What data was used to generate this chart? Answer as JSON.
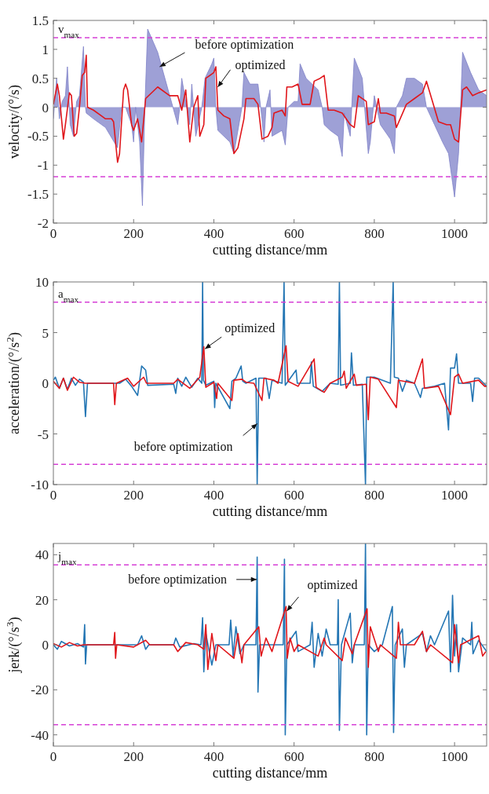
{
  "chart_data": [
    {
      "type": "line",
      "xlabel": "cutting distance/mm",
      "ylabel": "velocity/(°/s)",
      "xlim": [
        0,
        1080
      ],
      "xticks": [
        0,
        200,
        400,
        600,
        800,
        1000
      ],
      "ylim": [
        -2,
        1.5
      ],
      "yticks": [
        -2,
        -1.5,
        -1,
        -0.5,
        0,
        0.5,
        1,
        1.5
      ],
      "series": [
        {
          "type": "area",
          "color": "#7d80c8",
          "x": [
            0,
            8,
            15,
            22,
            30,
            35,
            42,
            50,
            58,
            65,
            75,
            80,
            82,
            100,
            130,
            160,
            170,
            180,
            195,
            200,
            205,
            215,
            222,
            228,
            235,
            260,
            290,
            310,
            315,
            320,
            330,
            340,
            345,
            355,
            370,
            378,
            395,
            400,
            405,
            410,
            440,
            450,
            470,
            475,
            490,
            510,
            520,
            525,
            530,
            540,
            545,
            570,
            578,
            585,
            600,
            610,
            615,
            630,
            660,
            670,
            675,
            690,
            710,
            720,
            725,
            740,
            750,
            770,
            785,
            790,
            800,
            815,
            840,
            850,
            855,
            870,
            880,
            900,
            920,
            930,
            950,
            970,
            985,
            995,
            1000,
            1010,
            1015,
            1020,
            1040,
            1060,
            1080
          ],
          "values": [
            -0.2,
            0.5,
            -0.2,
            0.1,
            0.2,
            0.7,
            -0.3,
            -0.5,
            0.1,
            0.2,
            1.05,
            0,
            -0.1,
            -0.2,
            -0.35,
            -0.7,
            0,
            0,
            -0.3,
            -0.6,
            0,
            -0.6,
            -1.7,
            0,
            1.35,
            0.95,
            0.2,
            -0.3,
            0,
            0.5,
            0.1,
            -0.3,
            0.4,
            -0.5,
            0,
            0.5,
            0.75,
            0.85,
            0,
            -0.4,
            -0.6,
            -0.8,
            0,
            0.6,
            0.4,
            0.4,
            -0.2,
            -0.6,
            0,
            0.3,
            -0.5,
            -0.4,
            -0.65,
            0,
            0.1,
            0.1,
            0.75,
            0.5,
            0.3,
            0,
            -0.3,
            -0.4,
            -0.5,
            -0.85,
            -0.1,
            -0.5,
            0.85,
            0.5,
            -0.8,
            -0.6,
            0.2,
            -0.3,
            -0.55,
            -0.8,
            0,
            0.2,
            0.5,
            0.5,
            0.4,
            0,
            -0.3,
            -0.6,
            -0.8,
            -1.3,
            -1.55,
            -0.8,
            0,
            0.95,
            0.6,
            0.3,
            0.2
          ]
        },
        {
          "type": "line",
          "color": "#e0161b",
          "x": [
            0,
            10,
            15,
            25,
            30,
            40,
            45,
            52,
            58,
            65,
            72,
            78,
            82,
            85,
            100,
            120,
            130,
            145,
            150,
            160,
            165,
            175,
            180,
            185,
            195,
            200,
            210,
            220,
            230,
            260,
            290,
            310,
            320,
            330,
            340,
            350,
            360,
            365,
            375,
            380,
            390,
            400,
            405,
            410,
            425,
            440,
            450,
            460,
            475,
            480,
            500,
            510,
            520,
            535,
            545,
            550,
            570,
            578,
            582,
            595,
            610,
            620,
            640,
            650,
            665,
            675,
            680,
            685,
            700,
            720,
            740,
            750,
            760,
            780,
            785,
            800,
            810,
            815,
            830,
            850,
            855,
            880,
            900,
            920,
            930,
            960,
            980,
            990,
            1000,
            1010,
            1020,
            1030,
            1045,
            1060,
            1080
          ],
          "values": [
            0.05,
            0.4,
            0.2,
            -0.55,
            -0.3,
            0.25,
            0.2,
            -0.5,
            -0.45,
            0,
            0.55,
            0.6,
            0.9,
            0,
            -0.05,
            -0.15,
            -0.2,
            -0.2,
            -0.25,
            -0.95,
            -0.8,
            0.3,
            0.4,
            0.3,
            -0.3,
            -0.4,
            -0.2,
            -0.6,
            0.15,
            0.35,
            0.2,
            0.2,
            -0.05,
            0.3,
            -0.6,
            0,
            0.2,
            -0.5,
            -0.3,
            0.5,
            0.55,
            0.6,
            0.7,
            -0.05,
            -0.15,
            -0.2,
            -0.8,
            -0.7,
            -0.2,
            0.15,
            0.15,
            0.05,
            -0.55,
            -0.5,
            -0.35,
            -0.1,
            -0.05,
            -0.15,
            0.35,
            0.35,
            0.4,
            0.05,
            0.05,
            0.45,
            0.5,
            0.55,
            0.25,
            -0.05,
            -0.05,
            -0.1,
            -0.3,
            -0.35,
            0.2,
            0.1,
            -0.3,
            -0.25,
            0.15,
            -0.1,
            -0.1,
            -0.15,
            -0.35,
            0.05,
            0.15,
            0.25,
            0.45,
            -0.25,
            -0.3,
            -0.3,
            -0.55,
            -0.6,
            0.3,
            0.35,
            0.2,
            0.25,
            0.3
          ]
        }
      ],
      "ref_lines": [
        {
          "axis": "y",
          "value": 1.2,
          "label": "v$_{max}$",
          "color": "#d63fd6",
          "line_style": "dashed"
        },
        {
          "axis": "y",
          "value": -1.2,
          "color": "#d63fd6",
          "line_style": "dashed"
        }
      ],
      "annotations": [
        {
          "text": "before optimization",
          "x": 265,
          "y": 0.7
        },
        {
          "text": "optimized",
          "x": 410,
          "y": 0.35
        }
      ]
    },
    {
      "type": "line",
      "xlabel": "cutting distance/mm",
      "ylabel": "acceleration/(°/s$^{2}$)",
      "xlim": [
        0,
        1080
      ],
      "xticks": [
        0,
        200,
        400,
        600,
        800,
        1000
      ],
      "ylim": [
        -10,
        10
      ],
      "yticks": [
        -10,
        -5,
        0,
        5,
        10
      ],
      "series": [
        {
          "type": "line",
          "color": "#2476b4",
          "x": [
            0,
            5,
            15,
            25,
            35,
            45,
            55,
            65,
            75,
            80,
            85,
            150,
            165,
            180,
            195,
            210,
            220,
            230,
            235,
            300,
            305,
            310,
            320,
            330,
            345,
            360,
            370,
            372,
            374,
            380,
            400,
            402,
            405,
            440,
            445,
            455,
            468,
            472,
            480,
            505,
            508,
            512,
            530,
            538,
            545,
            570,
            575,
            578,
            605,
            608,
            640,
            643,
            648,
            670,
            690,
            710,
            713,
            716,
            740,
            743,
            748,
            770,
            778,
            781,
            800,
            840,
            847,
            850,
            860,
            870,
            880,
            900,
            915,
            920,
            950,
            975,
            985,
            990,
            1000,
            1005,
            1010,
            1040,
            1045,
            1050,
            1060,
            1080
          ],
          "values": [
            0.3,
            0.6,
            -0.5,
            0.5,
            -0.6,
            0.5,
            -0.2,
            0.4,
            0.1,
            -3.3,
            0,
            0,
            0,
            0.4,
            -0.3,
            -1.2,
            1.7,
            1.3,
            -0.2,
            -0.1,
            -1,
            0.5,
            -0.3,
            0.6,
            -0.4,
            0.5,
            0,
            10,
            0.3,
            -0.2,
            0.2,
            -2.4,
            0,
            -2.5,
            0.2,
            0.5,
            1.7,
            0.2,
            0,
            0.5,
            -10,
            0.5,
            0.5,
            -1.5,
            0.3,
            0,
            10,
            -0.2,
            1.3,
            0,
            0,
            2.1,
            -0.3,
            -0.8,
            0,
            -0.1,
            10,
            -0.2,
            0,
            3,
            -0.2,
            -0.1,
            -10,
            0.6,
            0.6,
            0,
            10,
            0.6,
            0.5,
            -0.8,
            0.3,
            0,
            -1.4,
            -0.5,
            -0.3,
            0,
            -4.6,
            1.5,
            1.5,
            2.9,
            0,
            0,
            -1.8,
            0.5,
            0.5,
            -0.3
          ]
        },
        {
          "type": "line",
          "color": "#e0161b",
          "x": [
            0,
            15,
            25,
            35,
            50,
            65,
            80,
            150,
            153,
            157,
            185,
            200,
            225,
            232,
            300,
            310,
            340,
            365,
            375,
            380,
            400,
            407,
            410,
            445,
            450,
            470,
            480,
            500,
            520,
            525,
            550,
            560,
            580,
            585,
            610,
            650,
            655,
            675,
            690,
            720,
            725,
            730,
            750,
            755,
            780,
            785,
            790,
            810,
            855,
            860,
            900,
            920,
            925,
            960,
            990,
            1000,
            1010,
            1020,
            1060,
            1075,
            1080
          ],
          "values": [
            0.2,
            -0.5,
            0.5,
            -0.7,
            0.6,
            0.1,
            0,
            0,
            -2.1,
            0,
            0.5,
            -0.3,
            0.6,
            0,
            0,
            0.4,
            -0.5,
            0.6,
            3.6,
            -0.4,
            0.1,
            -1.5,
            0,
            -1.7,
            0.3,
            0.4,
            0.1,
            0,
            -1.7,
            0.5,
            0.3,
            0,
            3.7,
            0.2,
            -0.3,
            2.4,
            -0.4,
            -0.9,
            0,
            0.6,
            1.2,
            -0.5,
            0.9,
            -0.2,
            -0.1,
            -3.6,
            0.6,
            0.4,
            -2.4,
            0.3,
            0,
            2.4,
            -0.5,
            -0.3,
            -3.1,
            0.6,
            0.9,
            0,
            0.3,
            -0.3,
            -0.3
          ]
        }
      ],
      "ref_lines": [
        {
          "axis": "y",
          "value": 8,
          "label": "a$_{max}$",
          "color": "#d63fd6",
          "line_style": "dashed"
        },
        {
          "axis": "y",
          "value": -8,
          "color": "#d63fd6",
          "line_style": "dashed"
        }
      ],
      "annotations": [
        {
          "text": "optimized",
          "x": 378,
          "y": 3.4
        },
        {
          "text": "before optimization",
          "x": 508,
          "y": -4
        }
      ]
    },
    {
      "type": "line",
      "xlabel": "cutting distance/mm",
      "ylabel": "jerk/(°/s$^{3}$)",
      "xlim": [
        0,
        1080
      ],
      "xticks": [
        0,
        200,
        400,
        600,
        800,
        1000
      ],
      "ylim": [
        -45,
        45
      ],
      "yticks": [
        -40,
        -20,
        0,
        20,
        40
      ],
      "series": [
        {
          "type": "line",
          "color": "#2476b4",
          "x": [
            0,
            10,
            20,
            40,
            60,
            75,
            78,
            80,
            83,
            210,
            220,
            230,
            238,
            300,
            305,
            315,
            350,
            368,
            372,
            375,
            380,
            395,
            405,
            438,
            442,
            448,
            455,
            465,
            475,
            505,
            508,
            510,
            514,
            545,
            573,
            576,
            578,
            582,
            605,
            610,
            640,
            645,
            650,
            660,
            670,
            680,
            690,
            708,
            710,
            713,
            718,
            740,
            745,
            750,
            775,
            778,
            781,
            785,
            800,
            820,
            845,
            848,
            852,
            870,
            875,
            880,
            920,
            930,
            940,
            950,
            985,
            990,
            995,
            1000,
            1005,
            1010,
            1020,
            1040,
            1043,
            1046,
            1060,
            1080
          ],
          "values": [
            0,
            -2,
            1.5,
            -0.5,
            0.5,
            -1,
            9,
            -8.5,
            0,
            0,
            4,
            -2,
            0,
            0,
            3,
            -1,
            0.5,
            0,
            12,
            -12,
            5,
            -9,
            0,
            0,
            11,
            -5,
            8,
            -4,
            0,
            0,
            39,
            -21,
            0,
            0,
            0,
            38,
            -40,
            0,
            6,
            -3,
            0,
            10,
            -10,
            5,
            -5,
            7,
            0,
            0,
            20,
            -38,
            0,
            14,
            -8,
            0,
            0,
            45,
            -40,
            0,
            -3,
            0,
            17,
            -39,
            0,
            7,
            -10,
            0,
            5,
            -3,
            4,
            0,
            15,
            -12,
            22,
            -5,
            9,
            -12,
            3,
            0,
            10,
            -4,
            2,
            -3
          ]
        },
        {
          "type": "line",
          "color": "#e0161b",
          "x": [
            0,
            20,
            40,
            60,
            75,
            150,
            153,
            155,
            158,
            200,
            230,
            240,
            300,
            310,
            330,
            360,
            375,
            380,
            385,
            395,
            405,
            410,
            450,
            460,
            470,
            475,
            512,
            518,
            530,
            545,
            550,
            580,
            583,
            590,
            600,
            610,
            660,
            675,
            680,
            720,
            728,
            745,
            750,
            782,
            785,
            790,
            810,
            815,
            855,
            860,
            865,
            900,
            920,
            930,
            940,
            995,
            1000,
            1010,
            1015,
            1060,
            1070,
            1078
          ],
          "values": [
            0.5,
            -1,
            1,
            -0.5,
            0,
            0,
            5.5,
            -6,
            0,
            -1,
            2,
            0,
            0,
            -3,
            1,
            0,
            -2,
            9,
            -11,
            5,
            -7,
            0,
            -6,
            5,
            -8,
            0,
            8,
            -5,
            3,
            -3,
            0,
            17,
            -6,
            3,
            -3,
            0,
            -5,
            3,
            0,
            -7,
            3,
            -4,
            0,
            16,
            -10,
            8,
            -3,
            0,
            -6,
            10,
            0,
            0,
            6,
            -3,
            0,
            -8,
            9,
            -8,
            0,
            4,
            -5,
            -3
          ]
        }
      ],
      "ref_lines": [
        {
          "axis": "y",
          "value": 35.5,
          "label": "j$_{max}$",
          "color": "#d63fd6",
          "line_style": "dashed"
        },
        {
          "axis": "y",
          "value": -35.5,
          "color": "#d63fd6",
          "line_style": "dashed"
        }
      ],
      "annotations": [
        {
          "text": "before optimization",
          "x": 507,
          "y": 29
        },
        {
          "text": "optimized",
          "x": 582,
          "y": 15
        }
      ]
    }
  ]
}
